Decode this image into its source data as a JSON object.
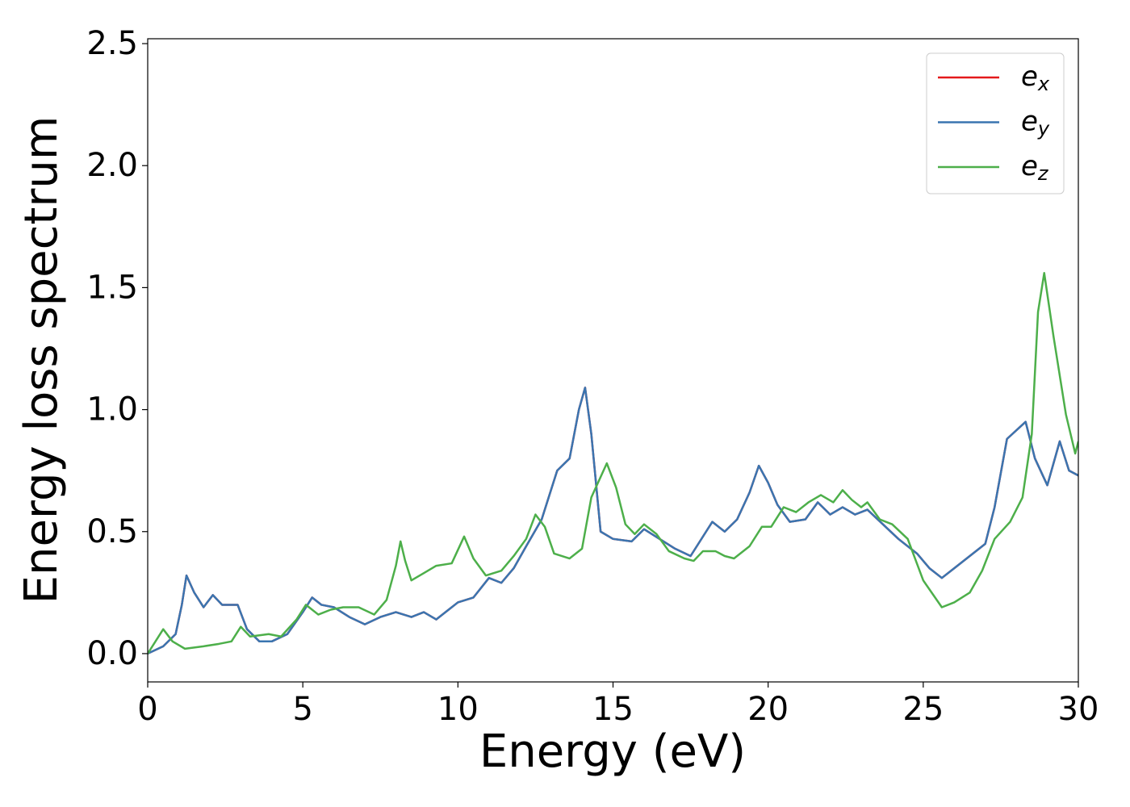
{
  "chart_data": {
    "type": "line",
    "xlabel": "Energy (eV)",
    "ylabel": "Energy loss spectrum",
    "xlim": [
      0,
      30
    ],
    "xticks": [
      0,
      5,
      10,
      15,
      20,
      25,
      30
    ],
    "ylim": [
      -0.116,
      2.52
    ],
    "yticks": [
      {
        "value": 0,
        "label": "0.0"
      },
      {
        "value": 0.5,
        "label": "0.5"
      },
      {
        "value": 1,
        "label": "1.0"
      },
      {
        "value": 1.5,
        "label": "1.5"
      },
      {
        "value": 2,
        "label": "2.0"
      },
      {
        "value": 2.5,
        "label": "2.5"
      }
    ],
    "grid": false,
    "legend": "upper right",
    "series": [
      {
        "name": "ex",
        "color": "#e41a1c",
        "x": [
          0,
          0.5,
          0.9,
          1.1,
          1.25,
          1.5,
          1.8,
          2.1,
          2.4,
          2.9,
          3.2,
          3.6,
          4.0,
          4.5,
          5.0,
          5.3,
          5.6,
          6.0,
          6.5,
          7.0,
          7.5,
          8.0,
          8.5,
          8.9,
          9.3,
          9.7,
          10.0,
          10.5,
          11.0,
          11.4,
          11.8,
          12.2,
          12.7,
          13.2,
          13.6,
          13.9,
          14.1,
          14.3,
          14.6,
          15.0,
          15.6,
          16.0,
          16.5,
          17.0,
          17.5,
          18.0,
          18.2,
          18.6,
          19.0,
          19.4,
          19.7,
          20.0,
          20.3,
          20.7,
          21.2,
          21.6,
          22.0,
          22.4,
          22.8,
          23.2,
          23.7,
          24.2,
          24.8,
          25.2,
          25.6,
          26.0,
          26.5,
          27.0,
          27.3,
          27.7,
          28.3,
          28.6,
          29.0,
          29.4,
          29.7,
          30.0
        ],
        "values": [
          0,
          0.03,
          0.08,
          0.2,
          0.32,
          0.25,
          0.19,
          0.24,
          0.2,
          0.2,
          0.1,
          0.05,
          0.05,
          0.08,
          0.17,
          0.23,
          0.2,
          0.19,
          0.15,
          0.12,
          0.15,
          0.17,
          0.15,
          0.17,
          0.14,
          0.18,
          0.21,
          0.23,
          0.31,
          0.29,
          0.35,
          0.44,
          0.55,
          0.75,
          0.8,
          1.0,
          1.09,
          0.9,
          0.5,
          0.47,
          0.46,
          0.51,
          0.47,
          0.43,
          0.4,
          0.5,
          0.54,
          0.5,
          0.55,
          0.66,
          0.77,
          0.7,
          0.61,
          0.54,
          0.55,
          0.62,
          0.57,
          0.6,
          0.57,
          0.59,
          0.53,
          0.47,
          0.41,
          0.35,
          0.31,
          0.35,
          0.4,
          0.45,
          0.6,
          0.88,
          0.95,
          0.8,
          0.69,
          0.87,
          0.75,
          0.73
        ]
      },
      {
        "name": "ey",
        "color": "#3a75b0",
        "x": [
          0,
          0.5,
          0.9,
          1.1,
          1.25,
          1.5,
          1.8,
          2.1,
          2.4,
          2.9,
          3.2,
          3.6,
          4.0,
          4.5,
          5.0,
          5.3,
          5.6,
          6.0,
          6.5,
          7.0,
          7.5,
          8.0,
          8.5,
          8.9,
          9.3,
          9.7,
          10.0,
          10.5,
          11.0,
          11.4,
          11.8,
          12.2,
          12.7,
          13.2,
          13.6,
          13.9,
          14.1,
          14.3,
          14.6,
          15.0,
          15.6,
          16.0,
          16.5,
          17.0,
          17.5,
          18.0,
          18.2,
          18.6,
          19.0,
          19.4,
          19.7,
          20.0,
          20.3,
          20.7,
          21.2,
          21.6,
          22.0,
          22.4,
          22.8,
          23.2,
          23.7,
          24.2,
          24.8,
          25.2,
          25.6,
          26.0,
          26.5,
          27.0,
          27.3,
          27.7,
          28.3,
          28.6,
          29.0,
          29.4,
          29.7,
          30.0
        ],
        "values": [
          0,
          0.03,
          0.08,
          0.2,
          0.32,
          0.25,
          0.19,
          0.24,
          0.2,
          0.2,
          0.1,
          0.05,
          0.05,
          0.08,
          0.17,
          0.23,
          0.2,
          0.19,
          0.15,
          0.12,
          0.15,
          0.17,
          0.15,
          0.17,
          0.14,
          0.18,
          0.21,
          0.23,
          0.31,
          0.29,
          0.35,
          0.44,
          0.55,
          0.75,
          0.8,
          1.0,
          1.09,
          0.9,
          0.5,
          0.47,
          0.46,
          0.51,
          0.47,
          0.43,
          0.4,
          0.5,
          0.54,
          0.5,
          0.55,
          0.66,
          0.77,
          0.7,
          0.61,
          0.54,
          0.55,
          0.62,
          0.57,
          0.6,
          0.57,
          0.59,
          0.53,
          0.47,
          0.41,
          0.35,
          0.31,
          0.35,
          0.4,
          0.45,
          0.6,
          0.88,
          0.95,
          0.8,
          0.69,
          0.87,
          0.75,
          0.73
        ]
      },
      {
        "name": "ez",
        "color": "#4daf4a",
        "x": [
          0,
          0.5,
          0.8,
          1.2,
          1.8,
          2.3,
          2.7,
          3.0,
          3.3,
          3.9,
          4.3,
          4.8,
          5.1,
          5.5,
          5.9,
          6.3,
          6.8,
          7.3,
          7.7,
          8.0,
          8.15,
          8.3,
          8.5,
          8.9,
          9.3,
          9.8,
          10.2,
          10.5,
          10.9,
          11.4,
          11.8,
          12.2,
          12.5,
          12.8,
          13.1,
          13.6,
          14.0,
          14.3,
          14.8,
          15.1,
          15.4,
          15.7,
          16.0,
          16.4,
          16.8,
          17.3,
          17.6,
          17.9,
          18.3,
          18.6,
          18.9,
          19.4,
          19.8,
          20.1,
          20.5,
          20.9,
          21.3,
          21.7,
          22.1,
          22.4,
          22.7,
          23.0,
          23.2,
          23.6,
          24.0,
          24.5,
          25.0,
          25.6,
          26.0,
          26.5,
          26.9,
          27.3,
          27.8,
          28.2,
          28.5,
          28.7,
          28.9,
          29.2,
          29.6,
          29.9,
          30.0
        ],
        "values": [
          0,
          0.1,
          0.05,
          0.02,
          0.03,
          0.04,
          0.05,
          0.11,
          0.07,
          0.08,
          0.07,
          0.14,
          0.2,
          0.16,
          0.18,
          0.19,
          0.19,
          0.16,
          0.22,
          0.36,
          0.46,
          0.38,
          0.3,
          0.33,
          0.36,
          0.37,
          0.48,
          0.39,
          0.32,
          0.34,
          0.4,
          0.47,
          0.57,
          0.52,
          0.41,
          0.39,
          0.43,
          0.64,
          0.78,
          0.68,
          0.53,
          0.49,
          0.53,
          0.49,
          0.42,
          0.39,
          0.38,
          0.42,
          0.42,
          0.4,
          0.39,
          0.44,
          0.52,
          0.52,
          0.6,
          0.58,
          0.62,
          0.65,
          0.62,
          0.67,
          0.63,
          0.6,
          0.62,
          0.55,
          0.53,
          0.47,
          0.3,
          0.19,
          0.21,
          0.25,
          0.34,
          0.47,
          0.54,
          0.64,
          0.9,
          1.4,
          1.56,
          1.3,
          0.98,
          0.82,
          0.87
        ]
      }
    ]
  }
}
